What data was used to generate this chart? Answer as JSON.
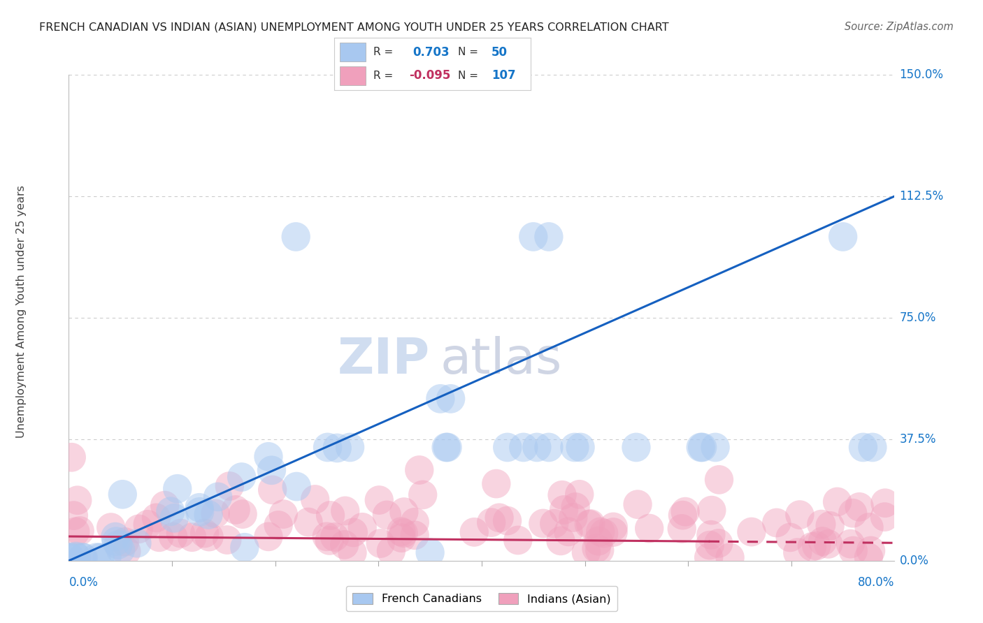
{
  "title": "FRENCH CANADIAN VS INDIAN (ASIAN) UNEMPLOYMENT AMONG YOUTH UNDER 25 YEARS CORRELATION CHART",
  "source": "Source: ZipAtlas.com",
  "ylabel": "Unemployment Among Youth under 25 years",
  "ytick_labels": [
    "0.0%",
    "37.5%",
    "75.0%",
    "112.5%",
    "150.0%"
  ],
  "ytick_values": [
    0.0,
    37.5,
    75.0,
    112.5,
    150.0
  ],
  "xlim": [
    0.0,
    80.0
  ],
  "ylim": [
    0.0,
    150.0
  ],
  "r_french": 0.703,
  "n_french": 50,
  "r_indian": -0.095,
  "n_indian": 107,
  "color_french": "#A8C8F0",
  "color_indian": "#F0A0BC",
  "color_french_line": "#1560C0",
  "color_indian_line": "#C03060",
  "color_axis_labels": "#1575C8",
  "color_r_french_val": "#1575C8",
  "color_r_indian_val": "#C03060",
  "color_n_val": "#1575C8",
  "watermark_zip": "#C8D8EE",
  "watermark_atlas": "#C0C8DC",
  "background_color": "#FFFFFF",
  "grid_color": "#CCCCCC",
  "title_color": "#222222",
  "source_color": "#666666",
  "ylabel_color": "#444444",
  "legend_box_color": "#DDDDDD",
  "french_line_x0": 0.0,
  "french_line_y0": 0.0,
  "french_line_x1": 80.0,
  "french_line_y1": 112.5,
  "indian_line_x0": 0.0,
  "indian_line_y0": 7.5,
  "indian_line_x1": 80.0,
  "indian_line_y1": 5.5,
  "indian_solid_end": 62.0,
  "fc_outliers_x": [
    22.0,
    36.0,
    37.0,
    45.0,
    46.5,
    75.0
  ],
  "fc_outliers_y": [
    100.0,
    50.0,
    50.0,
    100.0,
    100.0,
    100.0
  ],
  "fc_low_outlier_x": 35.0,
  "fc_low_outlier_y": 2.5,
  "ind_high_outliers_x": [
    63.0
  ],
  "ind_high_outliers_y": [
    25.0
  ],
  "seed": 12
}
